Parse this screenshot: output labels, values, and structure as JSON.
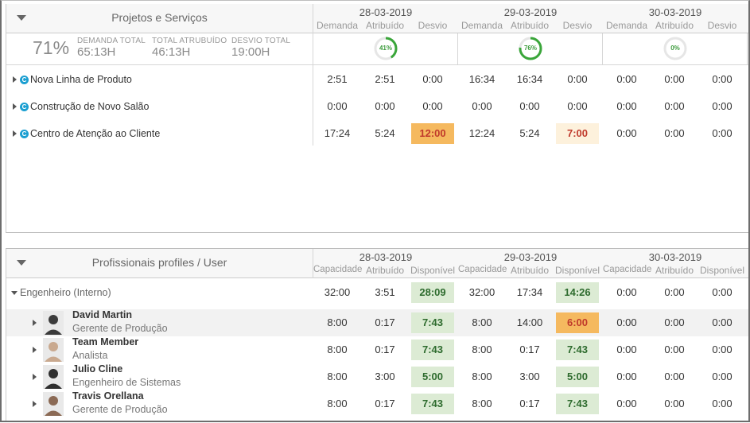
{
  "colors": {
    "orange": "#f5b95f",
    "light_orange": "#fdf1dc",
    "green": "#dcebd4",
    "ring": "#3aa63a"
  },
  "projects": {
    "title": "Projetos e Serviços",
    "dates": [
      "28-03-2019",
      "29-03-2019",
      "30-03-2019"
    ],
    "sub_headers": [
      "Demanda",
      "Atribuído",
      "Desvio"
    ],
    "percent": "71%",
    "stats": [
      {
        "label": "DEMANDA TOTAL",
        "value": "65:13H"
      },
      {
        "label": "TOTAL ATRUBUÍDO",
        "value": "46:13H"
      },
      {
        "label": "DESVIO TOTAL",
        "value": "19:00H"
      }
    ],
    "rings": [
      {
        "label": "41%",
        "fraction": 0.41
      },
      {
        "label": "76%",
        "fraction": 0.76
      },
      {
        "label": "0%",
        "fraction": 0
      }
    ],
    "badge": "C",
    "rows": [
      {
        "name": "Nova Linha de Produto",
        "values": [
          "2:51",
          "2:51",
          "0:00",
          "16:34",
          "16:34",
          "0:00",
          "0:00",
          "0:00",
          "0:00"
        ],
        "flags": [
          "",
          "",
          "",
          "",
          "",
          "",
          "",
          "",
          ""
        ]
      },
      {
        "name": "Construção de Novo Salão",
        "values": [
          "0:00",
          "0:00",
          "0:00",
          "0:00",
          "0:00",
          "0:00",
          "0:00",
          "0:00",
          "0:00"
        ],
        "flags": [
          "",
          "",
          "",
          "",
          "",
          "",
          "",
          "",
          ""
        ]
      },
      {
        "name": "Centro de Atenção ao Cliente",
        "values": [
          "17:24",
          "5:24",
          "12:00",
          "12:24",
          "5:24",
          "7:00",
          "0:00",
          "0:00",
          "0:00"
        ],
        "flags": [
          "",
          "",
          "orange",
          "",
          "",
          "light_orange",
          "",
          "",
          ""
        ]
      }
    ]
  },
  "professionals": {
    "title": "Profissionais profiles / User",
    "dates": [
      "28-03-2019",
      "29-03-2019",
      "30-03-2019"
    ],
    "sub_headers": [
      "Capacidade",
      "Atribuído",
      "Disponível"
    ],
    "group": {
      "name": "Engenheiro (Interno)",
      "values": [
        "32:00",
        "3:51",
        "28:09",
        "32:00",
        "17:34",
        "14:26",
        "0:00",
        "0:00",
        "0:00"
      ],
      "flags": [
        "",
        "",
        "green",
        "",
        "",
        "green",
        "",
        "",
        ""
      ]
    },
    "users": [
      {
        "name": "David Martin",
        "role": "Gerente de Produção",
        "values": [
          "8:00",
          "0:17",
          "7:43",
          "8:00",
          "14:00",
          "6:00",
          "0:00",
          "0:00",
          "0:00"
        ],
        "flags": [
          "",
          "",
          "green",
          "",
          "",
          "orange",
          "",
          "",
          ""
        ]
      },
      {
        "name": "Team Member",
        "role": "Analista",
        "values": [
          "8:00",
          "0:17",
          "7:43",
          "8:00",
          "0:17",
          "7:43",
          "0:00",
          "0:00",
          "0:00"
        ],
        "flags": [
          "",
          "",
          "green",
          "",
          "",
          "green",
          "",
          "",
          ""
        ]
      },
      {
        "name": "Julio Cline",
        "role": "Engenheiro de Sistemas",
        "values": [
          "8:00",
          "3:00",
          "5:00",
          "8:00",
          "3:00",
          "5:00",
          "0:00",
          "0:00",
          "0:00"
        ],
        "flags": [
          "",
          "",
          "green",
          "",
          "",
          "green",
          "",
          "",
          ""
        ]
      },
      {
        "name": "Travis Orellana",
        "role": "Gerente de Produção",
        "values": [
          "8:00",
          "0:17",
          "7:43",
          "8:00",
          "0:17",
          "7:43",
          "0:00",
          "0:00",
          "0:00"
        ],
        "flags": [
          "",
          "",
          "green",
          "",
          "",
          "green",
          "",
          "",
          ""
        ]
      }
    ]
  }
}
